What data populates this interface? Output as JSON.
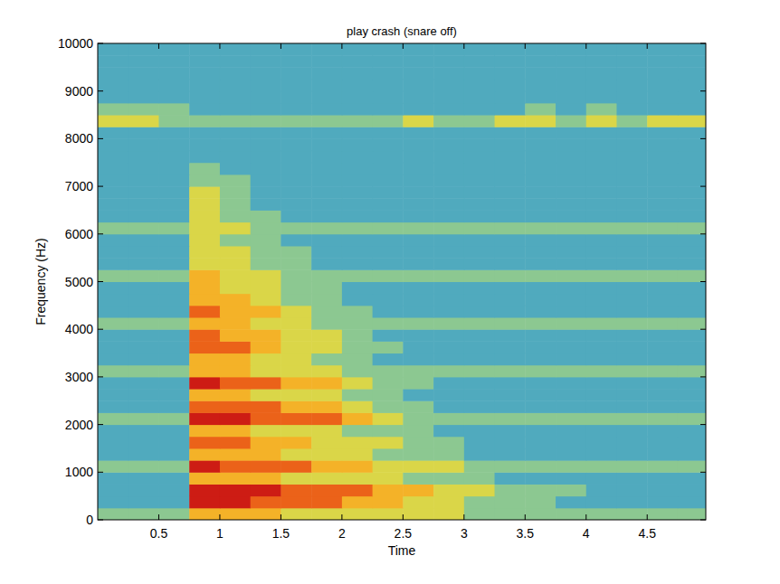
{
  "chart_data": {
    "type": "heatmap",
    "title": "play crash (snare off)",
    "x_label": "Time",
    "y_label": "Frequency (Hz)",
    "xlim": [
      0,
      4.98
    ],
    "ylim": [
      0,
      10000
    ],
    "xticks": [
      0.5,
      1,
      1.5,
      2,
      2.5,
      3,
      3.5,
      4,
      4.5
    ],
    "yticks": [
      0,
      1000,
      2000,
      3000,
      4000,
      5000,
      6000,
      7000,
      8000,
      9000,
      10000
    ],
    "grid": false,
    "zlim": [
      0,
      10
    ],
    "x_bins": [
      0,
      0.25,
      0.5,
      0.75,
      1,
      1.25,
      1.5,
      1.75,
      2,
      2.25,
      2.5,
      2.75,
      3,
      3.25,
      3.5,
      3.75,
      4,
      4.25,
      4.5,
      4.75,
      5
    ],
    "y_bins": [
      0,
      250,
      500,
      750,
      1000,
      1250,
      1500,
      1750,
      2000,
      2250,
      2500,
      2750,
      3000,
      3250,
      3500,
      3750,
      4000,
      4250,
      4500,
      4750,
      5000,
      5250,
      5500,
      5750,
      6000,
      6250,
      6500,
      6750,
      7000,
      7250,
      7500,
      7750,
      8000,
      8250,
      8500,
      8750,
      9000,
      9250,
      9500,
      9750,
      10000
    ],
    "values": [
      [
        5,
        5,
        5,
        7,
        7,
        7,
        6,
        6,
        6,
        6,
        6,
        6,
        5,
        5,
        5,
        5,
        5,
        5,
        5,
        5
      ],
      [
        4,
        4,
        4,
        9,
        9,
        8,
        8,
        8,
        7,
        7,
        6,
        6,
        5,
        5,
        5,
        4,
        4,
        4,
        4,
        4
      ],
      [
        4,
        4,
        4,
        9,
        9,
        9,
        8,
        8,
        8,
        7,
        7,
        6,
        6,
        5,
        5,
        5,
        4,
        4,
        4,
        4
      ],
      [
        4,
        4,
        4,
        7,
        7,
        7,
        6,
        6,
        6,
        6,
        5,
        5,
        5,
        4,
        4,
        4,
        4,
        4,
        4,
        4
      ],
      [
        5,
        5,
        5,
        9,
        8,
        8,
        8,
        7,
        7,
        6,
        6,
        6,
        5,
        5,
        5,
        5,
        5,
        5,
        5,
        5
      ],
      [
        4,
        4,
        4,
        7,
        7,
        7,
        6,
        6,
        6,
        5,
        5,
        5,
        4,
        4,
        4,
        4,
        4,
        4,
        4,
        4
      ],
      [
        4,
        4,
        4,
        8,
        8,
        7,
        7,
        6,
        6,
        6,
        5,
        5,
        4,
        4,
        4,
        4,
        4,
        4,
        4,
        4
      ],
      [
        4,
        4,
        4,
        7,
        7,
        6,
        6,
        6,
        5,
        5,
        5,
        4,
        4,
        4,
        4,
        4,
        4,
        4,
        4,
        4
      ],
      [
        5,
        5,
        5,
        9,
        9,
        8,
        8,
        8,
        7,
        6,
        5,
        5,
        5,
        5,
        5,
        5,
        5,
        5,
        5,
        5
      ],
      [
        4,
        4,
        4,
        8,
        8,
        8,
        7,
        7,
        6,
        5,
        5,
        4,
        4,
        4,
        4,
        4,
        4,
        4,
        4,
        4
      ],
      [
        4,
        4,
        4,
        7,
        7,
        6,
        6,
        6,
        5,
        5,
        4,
        4,
        4,
        4,
        4,
        4,
        4,
        4,
        4,
        4
      ],
      [
        4,
        4,
        4,
        9,
        8,
        8,
        7,
        7,
        6,
        5,
        5,
        4,
        4,
        4,
        4,
        4,
        4,
        4,
        4,
        4
      ],
      [
        5,
        5,
        5,
        7,
        7,
        6,
        6,
        6,
        5,
        5,
        5,
        5,
        5,
        5,
        5,
        5,
        5,
        5,
        5,
        5
      ],
      [
        4,
        4,
        4,
        7,
        7,
        6,
        6,
        5,
        5,
        4,
        4,
        4,
        4,
        4,
        4,
        4,
        4,
        4,
        4,
        4
      ],
      [
        4,
        4,
        4,
        8,
        8,
        7,
        6,
        6,
        5,
        5,
        4,
        4,
        4,
        4,
        4,
        4,
        4,
        4,
        4,
        4
      ],
      [
        4,
        4,
        4,
        8,
        7,
        7,
        6,
        6,
        5,
        4,
        4,
        4,
        4,
        4,
        4,
        4,
        4,
        4,
        4,
        4
      ],
      [
        5,
        5,
        5,
        7,
        7,
        6,
        6,
        5,
        5,
        5,
        5,
        5,
        5,
        5,
        5,
        5,
        5,
        5,
        5,
        5
      ],
      [
        4,
        4,
        4,
        8,
        7,
        7,
        6,
        5,
        5,
        4,
        4,
        4,
        4,
        4,
        4,
        4,
        4,
        4,
        4,
        4
      ],
      [
        4,
        4,
        4,
        7,
        7,
        6,
        5,
        5,
        4,
        4,
        4,
        4,
        4,
        4,
        4,
        4,
        4,
        4,
        4,
        4
      ],
      [
        4,
        4,
        4,
        7,
        6,
        6,
        5,
        5,
        4,
        4,
        4,
        4,
        4,
        4,
        4,
        4,
        4,
        4,
        4,
        4
      ],
      [
        5,
        5,
        5,
        7,
        6,
        6,
        5,
        5,
        5,
        5,
        5,
        5,
        5,
        5,
        5,
        5,
        5,
        5,
        5,
        5
      ],
      [
        4,
        4,
        4,
        6,
        6,
        5,
        5,
        4,
        4,
        4,
        4,
        4,
        4,
        4,
        4,
        4,
        4,
        4,
        4,
        4
      ],
      [
        4,
        4,
        4,
        6,
        6,
        5,
        5,
        4,
        4,
        4,
        4,
        4,
        4,
        4,
        4,
        4,
        4,
        4,
        4,
        4
      ],
      [
        4,
        4,
        4,
        6,
        5,
        5,
        4,
        4,
        4,
        4,
        4,
        4,
        4,
        4,
        4,
        4,
        4,
        4,
        4,
        4
      ],
      [
        5,
        5,
        5,
        6,
        6,
        5,
        5,
        5,
        5,
        5,
        5,
        5,
        5,
        5,
        5,
        5,
        5,
        5,
        5,
        5
      ],
      [
        4,
        4,
        4,
        6,
        5,
        5,
        4,
        4,
        4,
        4,
        4,
        4,
        4,
        4,
        4,
        4,
        4,
        4,
        4,
        4
      ],
      [
        4,
        4,
        4,
        6,
        5,
        4,
        4,
        4,
        4,
        4,
        4,
        4,
        4,
        4,
        4,
        4,
        4,
        4,
        4,
        4
      ],
      [
        4,
        4,
        4,
        6,
        5,
        4,
        4,
        4,
        4,
        4,
        4,
        4,
        4,
        4,
        4,
        4,
        4,
        4,
        4,
        4
      ],
      [
        4,
        4,
        4,
        5,
        5,
        4,
        4,
        4,
        4,
        4,
        4,
        4,
        4,
        4,
        4,
        4,
        4,
        4,
        4,
        4
      ],
      [
        4,
        4,
        4,
        5,
        4,
        4,
        4,
        4,
        4,
        4,
        4,
        4,
        4,
        4,
        4,
        4,
        4,
        4,
        4,
        4
      ],
      [
        4,
        4,
        4,
        4,
        4,
        4,
        4,
        4,
        4,
        4,
        4,
        4,
        4,
        4,
        4,
        4,
        4,
        4,
        4,
        4
      ],
      [
        4,
        4,
        4,
        4,
        4,
        4,
        4,
        4,
        4,
        4,
        4,
        4,
        4,
        4,
        4,
        4,
        4,
        4,
        4,
        4
      ],
      [
        4,
        4,
        4,
        4,
        4,
        4,
        4,
        4,
        4,
        4,
        4,
        4,
        4,
        4,
        4,
        4,
        4,
        4,
        4,
        4
      ],
      [
        6,
        6,
        5,
        5,
        5,
        5,
        5,
        5,
        5,
        5,
        6,
        5,
        5,
        6,
        6,
        5,
        6,
        5,
        6,
        6
      ],
      [
        5,
        5,
        5,
        4,
        4,
        4,
        4,
        4,
        4,
        4,
        4,
        4,
        4,
        4,
        5,
        4,
        5,
        4,
        4,
        4
      ],
      [
        4,
        4,
        4,
        4,
        4,
        4,
        4,
        4,
        4,
        4,
        4,
        4,
        4,
        4,
        4,
        4,
        4,
        4,
        4,
        4
      ],
      [
        4,
        4,
        4,
        4,
        4,
        4,
        4,
        4,
        4,
        4,
        4,
        4,
        4,
        4,
        4,
        4,
        4,
        4,
        4,
        4
      ],
      [
        4,
        4,
        4,
        4,
        4,
        4,
        4,
        4,
        4,
        4,
        4,
        4,
        4,
        4,
        4,
        4,
        4,
        4,
        4,
        4
      ],
      [
        4,
        4,
        4,
        4,
        4,
        4,
        4,
        4,
        4,
        4,
        4,
        4,
        4,
        4,
        4,
        4,
        4,
        4,
        4,
        4
      ],
      [
        4,
        4,
        4,
        4,
        4,
        4,
        4,
        4,
        4,
        4,
        4,
        4,
        4,
        4,
        4,
        4,
        4,
        4,
        4,
        4
      ]
    ]
  }
}
